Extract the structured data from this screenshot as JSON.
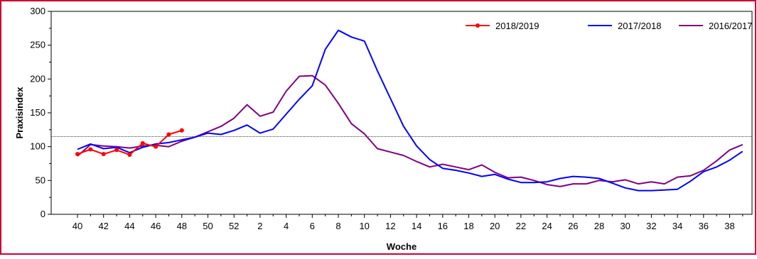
{
  "chart_data": {
    "type": "line",
    "xlabel": "Woche",
    "ylabel": "Praxisindex",
    "ylim": [
      0,
      300
    ],
    "yticks": [
      0,
      50,
      100,
      150,
      200,
      250,
      300
    ],
    "x_categories": [
      40,
      41,
      42,
      43,
      44,
      45,
      46,
      47,
      48,
      49,
      50,
      51,
      52,
      1,
      2,
      3,
      4,
      5,
      6,
      7,
      8,
      9,
      10,
      11,
      12,
      13,
      14,
      15,
      16,
      17,
      18,
      19,
      20,
      21,
      22,
      23,
      24,
      25,
      26,
      27,
      28,
      29,
      30,
      31,
      32,
      33,
      34,
      35,
      36,
      37,
      38,
      39
    ],
    "x_tick_labels": [
      "40",
      "42",
      "44",
      "46",
      "48",
      "50",
      "52",
      "2",
      "4",
      "6",
      "8",
      "10",
      "12",
      "14",
      "16",
      "18",
      "20",
      "22",
      "24",
      "26",
      "28",
      "30",
      "32",
      "34",
      "36",
      "38"
    ],
    "reference_line": 115,
    "grid": false,
    "legend_position": "top-right",
    "series": [
      {
        "name": "2018/2019",
        "color": "#ff0000",
        "markers": true,
        "values": [
          89,
          96,
          89,
          95,
          88,
          105,
          100,
          118,
          124
        ]
      },
      {
        "name": "2017/2018",
        "color": "#0000ff",
        "markers": false,
        "values": [
          96,
          104,
          97,
          99,
          91,
          99,
          104,
          106,
          110,
          114,
          120,
          118,
          124,
          132,
          120,
          126,
          148,
          170,
          190,
          244,
          272,
          262,
          256,
          212,
          171,
          130,
          101,
          81,
          68,
          65,
          61,
          56,
          59,
          52,
          47,
          47,
          48,
          53,
          56,
          55,
          53,
          46,
          39,
          35,
          35,
          36,
          37,
          49,
          63,
          70,
          80,
          93
        ]
      },
      {
        "name": "2016/2017",
        "color": "#800080",
        "markers": false,
        "values": [
          86,
          103,
          101,
          100,
          98,
          101,
          102,
          100,
          108,
          114,
          122,
          130,
          142,
          162,
          145,
          151,
          182,
          204,
          205,
          191,
          164,
          134,
          119,
          97,
          92,
          87,
          78,
          70,
          74,
          70,
          66,
          73,
          62,
          54,
          55,
          50,
          44,
          41,
          45,
          45,
          50,
          48,
          51,
          45,
          48,
          45,
          55,
          57,
          65,
          79,
          95,
          103
        ]
      }
    ]
  }
}
